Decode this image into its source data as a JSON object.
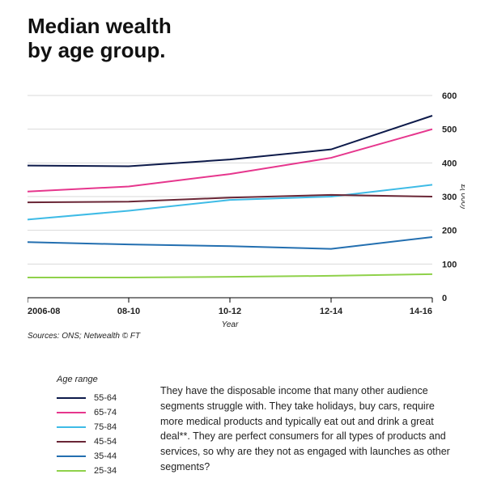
{
  "title_line1": "Median wealth",
  "title_line2": "by age group.",
  "chart": {
    "type": "line",
    "background_color": "#ffffff",
    "grid_color": "#d9d9d9",
    "axis_color": "#000000",
    "tick_fontsize": 11,
    "x_label": "Year",
    "y_label": "£('000)",
    "y_label_fontsize": 10,
    "ylim": [
      0,
      600
    ],
    "ytick_step": 100,
    "x_categories": [
      "2006-08",
      "08-10",
      "10-12",
      "12-14",
      "14-16"
    ],
    "line_width": 2,
    "series": [
      {
        "name": "55-64",
        "color": "#0d1a4a",
        "values": [
          392,
          390,
          410,
          440,
          540
        ]
      },
      {
        "name": "65-74",
        "color": "#e6368d",
        "values": [
          315,
          330,
          367,
          415,
          500
        ]
      },
      {
        "name": "75-84",
        "color": "#3ebbe6",
        "values": [
          232,
          258,
          290,
          300,
          335
        ]
      },
      {
        "name": "45-54",
        "color": "#6a2636",
        "values": [
          283,
          285,
          297,
          305,
          300
        ]
      },
      {
        "name": "35-44",
        "color": "#236fb0",
        "values": [
          165,
          158,
          153,
          145,
          180
        ]
      },
      {
        "name": "25-34",
        "color": "#8fd14a",
        "values": [
          60,
          60,
          62,
          65,
          70
        ]
      }
    ]
  },
  "sources": "Sources: ONS; Netwealth © FT",
  "legend_title": "Age range",
  "paragraph": "They have the disposable income that many other audience segments struggle with. They take holidays, buy cars, require more medical products and typically eat out and drink a great deal**. They are perfect consumers for all types of products and services, so why are they not as engaged with launches as other segments?"
}
